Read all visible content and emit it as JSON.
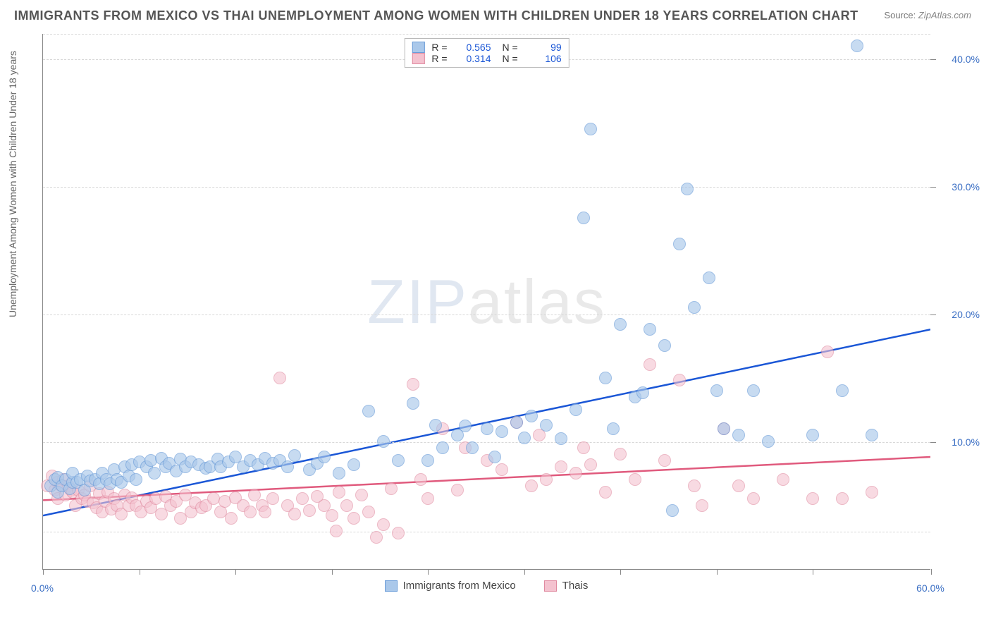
{
  "title": "IMMIGRANTS FROM MEXICO VS THAI UNEMPLOYMENT AMONG WOMEN WITH CHILDREN UNDER 18 YEARS CORRELATION CHART",
  "source_label": "Source:",
  "source_value": "ZipAtlas.com",
  "ylabel": "Unemployment Among Women with Children Under 18 years",
  "watermark_a": "ZIP",
  "watermark_b": "atlas",
  "chart": {
    "type": "scatter",
    "xlim": [
      0,
      60
    ],
    "ylim": [
      0,
      42
    ],
    "xticks_positions": [
      0,
      6.5,
      13,
      19.5,
      26,
      32.5,
      39,
      45.5,
      52,
      60
    ],
    "xticks": [
      {
        "pos": 0,
        "label": "0.0%"
      },
      {
        "pos": 60,
        "label": "60.0%"
      }
    ],
    "yticks": [
      {
        "pos": 10,
        "label": "10.0%"
      },
      {
        "pos": 20,
        "label": "20.0%"
      },
      {
        "pos": 30,
        "label": "30.0%"
      },
      {
        "pos": 40,
        "label": "40.0%"
      }
    ],
    "gridlines_y": [
      3,
      10,
      20,
      30,
      40,
      42
    ],
    "point_radius": 9,
    "point_stroke_width": 1.5,
    "background": "#ffffff",
    "grid_color": "#d8d8d8",
    "axis_color": "#888888",
    "tick_label_color": "#3b6fc4"
  },
  "series": [
    {
      "name": "Immigrants from Mexico",
      "fill": "#aac8ea",
      "stroke": "#6a9cd8",
      "fill_opacity": 0.65,
      "trend_color": "#1a56d6",
      "trend_width": 2.5,
      "trend": {
        "x0": 0,
        "y0": 4.2,
        "x1": 60,
        "y1": 18.8
      },
      "r_label": "R =",
      "r_value": "0.565",
      "n_label": "N =",
      "n_value": "99",
      "points": [
        [
          0.5,
          6.5
        ],
        [
          0.8,
          7.0
        ],
        [
          1.0,
          6.0
        ],
        [
          1.0,
          7.2
        ],
        [
          1.3,
          6.5
        ],
        [
          1.5,
          7.0
        ],
        [
          1.8,
          6.3
        ],
        [
          2.0,
          6.8
        ],
        [
          2.0,
          7.5
        ],
        [
          2.3,
          6.8
        ],
        [
          2.5,
          7.0
        ],
        [
          2.8,
          6.2
        ],
        [
          3.0,
          7.3
        ],
        [
          3.2,
          6.9
        ],
        [
          3.5,
          7.0
        ],
        [
          3.8,
          6.7
        ],
        [
          4.0,
          7.5
        ],
        [
          4.3,
          7.0
        ],
        [
          4.5,
          6.7
        ],
        [
          4.8,
          7.8
        ],
        [
          5.0,
          7.0
        ],
        [
          5.3,
          6.8
        ],
        [
          5.5,
          8.0
        ],
        [
          5.8,
          7.3
        ],
        [
          6.0,
          8.2
        ],
        [
          6.3,
          7.0
        ],
        [
          6.5,
          8.4
        ],
        [
          7.0,
          8.0
        ],
        [
          7.3,
          8.5
        ],
        [
          7.5,
          7.5
        ],
        [
          8.0,
          8.7
        ],
        [
          8.3,
          8.0
        ],
        [
          8.5,
          8.3
        ],
        [
          9.0,
          7.7
        ],
        [
          9.3,
          8.6
        ],
        [
          9.6,
          8.0
        ],
        [
          10.0,
          8.4
        ],
        [
          10.5,
          8.2
        ],
        [
          11.0,
          7.9
        ],
        [
          11.3,
          8.0
        ],
        [
          11.8,
          8.6
        ],
        [
          12.0,
          8.0
        ],
        [
          12.5,
          8.4
        ],
        [
          13.0,
          8.8
        ],
        [
          13.5,
          8.0
        ],
        [
          14.0,
          8.5
        ],
        [
          14.5,
          8.2
        ],
        [
          15.0,
          8.7
        ],
        [
          15.5,
          8.3
        ],
        [
          16.0,
          8.5
        ],
        [
          16.5,
          8.0
        ],
        [
          17.0,
          8.9
        ],
        [
          18.0,
          7.8
        ],
        [
          18.5,
          8.3
        ],
        [
          19.0,
          8.8
        ],
        [
          20.0,
          7.5
        ],
        [
          21.0,
          8.2
        ],
        [
          22.0,
          12.4
        ],
        [
          23.0,
          10.0
        ],
        [
          24.0,
          8.5
        ],
        [
          25.0,
          13.0
        ],
        [
          26.0,
          8.5
        ],
        [
          26.5,
          11.3
        ],
        [
          27.0,
          9.5
        ],
        [
          28.0,
          10.5
        ],
        [
          28.5,
          11.2
        ],
        [
          29.0,
          9.5
        ],
        [
          30.0,
          11.0
        ],
        [
          30.5,
          8.8
        ],
        [
          31.0,
          10.8
        ],
        [
          32.0,
          11.5
        ],
        [
          32.5,
          10.3
        ],
        [
          33.0,
          12.0
        ],
        [
          34.0,
          11.3
        ],
        [
          35.0,
          10.2
        ],
        [
          36.0,
          12.5
        ],
        [
          36.5,
          27.5
        ],
        [
          37.0,
          34.5
        ],
        [
          38.0,
          15.0
        ],
        [
          38.5,
          11.0
        ],
        [
          39.0,
          19.2
        ],
        [
          40.0,
          13.5
        ],
        [
          40.5,
          13.8
        ],
        [
          41.0,
          18.8
        ],
        [
          42.0,
          17.5
        ],
        [
          42.5,
          4.6
        ],
        [
          43.0,
          25.5
        ],
        [
          43.5,
          29.8
        ],
        [
          44.0,
          20.5
        ],
        [
          45.0,
          22.8
        ],
        [
          45.5,
          14.0
        ],
        [
          46.0,
          11.0
        ],
        [
          47.0,
          10.5
        ],
        [
          48.0,
          14.0
        ],
        [
          49.0,
          10.0
        ],
        [
          52.0,
          10.5
        ],
        [
          54.0,
          14.0
        ],
        [
          55.0,
          41.0
        ],
        [
          56.0,
          10.5
        ]
      ]
    },
    {
      "name": "Thais",
      "fill": "#f4c2cf",
      "stroke": "#e08aa0",
      "fill_opacity": 0.6,
      "trend_color": "#e05a7d",
      "trend_width": 2.5,
      "trend": {
        "x0": 0,
        "y0": 5.4,
        "x1": 60,
        "y1": 8.8
      },
      "r_label": "R =",
      "r_value": "0.314",
      "n_label": "N =",
      "n_value": "106",
      "points": [
        [
          0.3,
          6.5
        ],
        [
          0.6,
          7.3
        ],
        [
          0.8,
          6.2
        ],
        [
          1.0,
          6.8
        ],
        [
          1.0,
          5.5
        ],
        [
          1.2,
          6.6
        ],
        [
          1.4,
          7.0
        ],
        [
          1.5,
          5.8
        ],
        [
          1.7,
          6.5
        ],
        [
          1.9,
          6.2
        ],
        [
          2.0,
          6.0
        ],
        [
          2.2,
          5.0
        ],
        [
          2.4,
          6.2
        ],
        [
          2.6,
          5.5
        ],
        [
          2.8,
          5.8
        ],
        [
          3.0,
          5.3
        ],
        [
          3.2,
          6.5
        ],
        [
          3.4,
          5.2
        ],
        [
          3.6,
          4.8
        ],
        [
          3.8,
          5.9
        ],
        [
          4.0,
          4.5
        ],
        [
          4.2,
          5.3
        ],
        [
          4.4,
          6.0
        ],
        [
          4.6,
          4.7
        ],
        [
          4.8,
          5.5
        ],
        [
          5.0,
          5.0
        ],
        [
          5.3,
          4.3
        ],
        [
          5.5,
          5.8
        ],
        [
          5.8,
          5.0
        ],
        [
          6.0,
          5.6
        ],
        [
          6.3,
          5.0
        ],
        [
          6.6,
          4.5
        ],
        [
          7.0,
          5.3
        ],
        [
          7.3,
          4.8
        ],
        [
          7.6,
          5.5
        ],
        [
          8.0,
          4.3
        ],
        [
          8.3,
          5.7
        ],
        [
          8.6,
          5.0
        ],
        [
          9.0,
          5.3
        ],
        [
          9.3,
          4.0
        ],
        [
          9.6,
          5.8
        ],
        [
          10.0,
          4.5
        ],
        [
          10.3,
          5.2
        ],
        [
          10.7,
          4.8
        ],
        [
          11.0,
          5.0
        ],
        [
          11.5,
          5.5
        ],
        [
          12.0,
          4.5
        ],
        [
          12.3,
          5.3
        ],
        [
          12.7,
          4.0
        ],
        [
          13.0,
          5.6
        ],
        [
          13.5,
          5.0
        ],
        [
          14.0,
          4.5
        ],
        [
          14.3,
          5.8
        ],
        [
          14.8,
          5.0
        ],
        [
          15.0,
          4.5
        ],
        [
          15.5,
          5.5
        ],
        [
          16.0,
          15.0
        ],
        [
          16.5,
          5.0
        ],
        [
          17.0,
          4.3
        ],
        [
          17.5,
          5.5
        ],
        [
          18.0,
          4.6
        ],
        [
          18.5,
          5.7
        ],
        [
          19.0,
          5.0
        ],
        [
          19.5,
          4.2
        ],
        [
          19.8,
          3.0
        ],
        [
          20.0,
          6.0
        ],
        [
          20.5,
          5.0
        ],
        [
          21.0,
          4.0
        ],
        [
          21.5,
          5.8
        ],
        [
          22.0,
          4.5
        ],
        [
          22.5,
          2.5
        ],
        [
          23.0,
          3.5
        ],
        [
          23.5,
          6.3
        ],
        [
          24.0,
          2.8
        ],
        [
          25.0,
          14.5
        ],
        [
          25.5,
          7.0
        ],
        [
          26.0,
          5.5
        ],
        [
          27.0,
          11.0
        ],
        [
          28.0,
          6.2
        ],
        [
          28.5,
          9.5
        ],
        [
          30.0,
          8.5
        ],
        [
          31.0,
          7.8
        ],
        [
          32.0,
          11.5
        ],
        [
          33.0,
          6.5
        ],
        [
          33.5,
          10.5
        ],
        [
          34.0,
          7.0
        ],
        [
          35.0,
          8.0
        ],
        [
          36.0,
          7.5
        ],
        [
          36.5,
          9.5
        ],
        [
          37.0,
          8.2
        ],
        [
          38.0,
          6.0
        ],
        [
          39.0,
          9.0
        ],
        [
          40.0,
          7.0
        ],
        [
          41.0,
          16.0
        ],
        [
          42.0,
          8.5
        ],
        [
          43.0,
          14.8
        ],
        [
          44.0,
          6.5
        ],
        [
          44.5,
          5.0
        ],
        [
          46.0,
          11.0
        ],
        [
          47.0,
          6.5
        ],
        [
          48.0,
          5.5
        ],
        [
          50.0,
          7.0
        ],
        [
          52.0,
          5.5
        ],
        [
          53.0,
          17.0
        ],
        [
          54.0,
          5.5
        ],
        [
          56.0,
          6.0
        ]
      ]
    }
  ],
  "legend_bottom": [
    {
      "label": "Immigrants from Mexico",
      "fill": "#aac8ea",
      "stroke": "#6a9cd8"
    },
    {
      "label": "Thais",
      "fill": "#f4c2cf",
      "stroke": "#e08aa0"
    }
  ]
}
